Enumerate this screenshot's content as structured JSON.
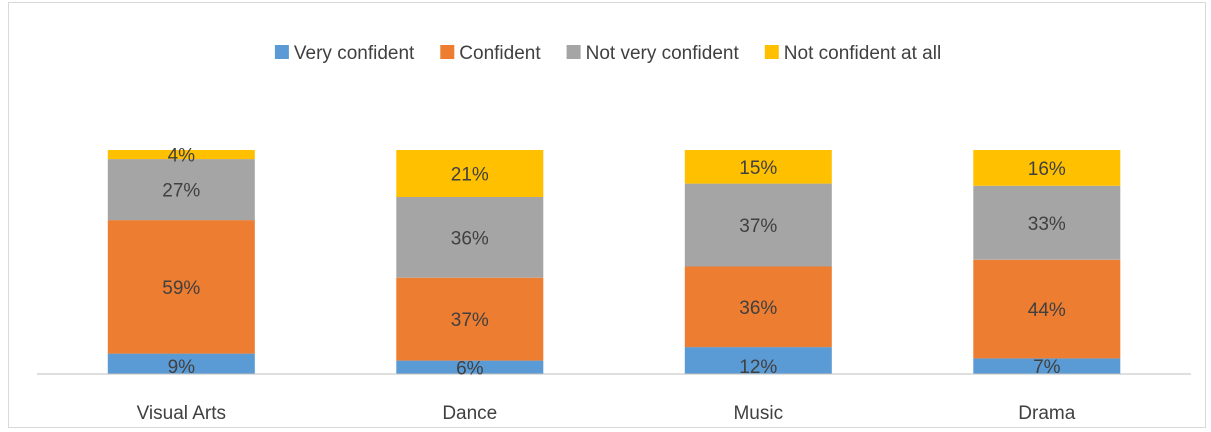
{
  "chart_data": {
    "type": "bar",
    "stacked": true,
    "percent": true,
    "title": "",
    "xlabel": "",
    "ylabel": "",
    "ylim": [
      0,
      100
    ],
    "grid": false,
    "legend_position": "top",
    "categories": [
      "Visual Arts",
      "Dance",
      "Music",
      "Drama"
    ],
    "series": [
      {
        "name": "Very confident",
        "color": "#5b9bd5",
        "values": [
          9,
          6,
          12,
          7
        ]
      },
      {
        "name": "Confident",
        "color": "#ed7d31",
        "values": [
          59,
          37,
          36,
          44
        ]
      },
      {
        "name": "Not very confident",
        "color": "#a5a5a5",
        "values": [
          27,
          36,
          37,
          33
        ]
      },
      {
        "name": "Not confident at all",
        "color": "#ffc000",
        "values": [
          4,
          21,
          15,
          16
        ]
      }
    ],
    "value_suffix": "%"
  }
}
